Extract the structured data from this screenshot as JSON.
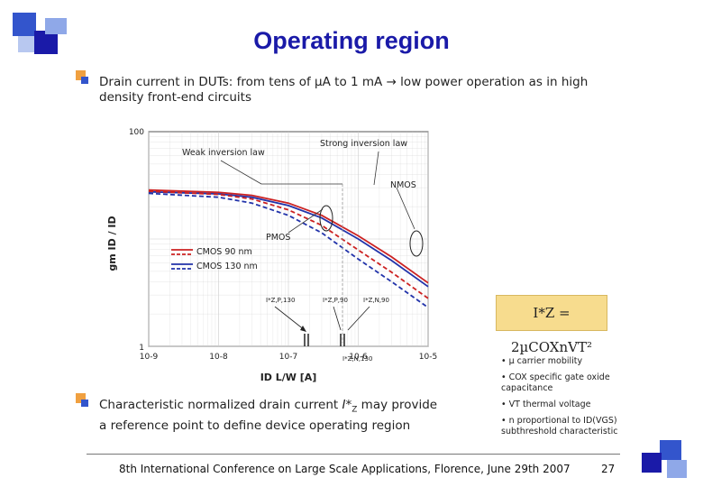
{
  "slide": {
    "title": "Operating region",
    "bullet1": "Drain current in DUTs: from tens of µA to 1 mA → low power operation as in high density front-end circuits",
    "bullet2_pre": "Characteristic normalized drain current ",
    "bullet2_sym": "I*",
    "bullet2_sub": "Z",
    "bullet2_post": " may provide a reference point to define device operating region",
    "footer": "8th International Conference on Large Scale Applications, Florence, June 29th 2007",
    "page_number": "27"
  },
  "formula": {
    "text": "I*Z = 2µCOXnVT²"
  },
  "notes": [
    "• µ carrier mobility",
    "• COX specific gate oxide capacitance",
    "• VT thermal voltage",
    "• n proportional to ID(VGS) subthreshold characteristic"
  ],
  "colors": {
    "title": "#1a1aa8",
    "bullet_orange": "#f0a040",
    "bullet_blue": "#3355cc",
    "cmos90": "#cc2222",
    "cmos130": "#2233aa",
    "formula_bg": "#f7dc8e"
  },
  "chart_data": {
    "type": "line",
    "xscale": "log",
    "yscale": "log",
    "xlim": [
      1e-09,
      1e-05
    ],
    "ylim": [
      1,
      100
    ],
    "xticks": [
      "10-9",
      "10-8",
      "10-7",
      "10-6",
      "10-5"
    ],
    "yticks": [
      "1",
      "100"
    ],
    "xlabel": "ID L/W [A]",
    "ylabel": "gm ID / ID",
    "legend": [
      "CMOS 90 nm",
      "CMOS 130 nm"
    ],
    "legend_placement": "left-middle",
    "annotations": [
      "Weak inversion law",
      "Strong inversion law",
      "NMOS",
      "PMOS",
      "I*Z,P,130",
      "I*Z,P,90",
      "I*Z,N,90",
      "I*Z,N,130"
    ],
    "series": [
      {
        "name": "NMOS 90 nm",
        "x": [
          1e-09,
          1e-08,
          3e-08,
          1e-07,
          3e-07,
          1e-06,
          3e-06,
          1e-05
        ],
        "y": [
          28.6,
          27.2,
          25.5,
          21.6,
          16.6,
          10.7,
          6.8,
          3.9
        ]
      },
      {
        "name": "NMOS 130 nm",
        "x": [
          1e-09,
          1e-08,
          3e-08,
          1e-07,
          3e-07,
          1e-06,
          3e-06,
          1e-05
        ],
        "y": [
          27.5,
          26.3,
          24.5,
          20.5,
          15.7,
          10.0,
          6.3,
          3.6
        ]
      },
      {
        "name": "PMOS 90 nm",
        "x": [
          1e-09,
          1e-08,
          3e-08,
          1e-07,
          3e-07,
          1e-06,
          3e-06,
          1e-05
        ],
        "y": [
          27.9,
          26.0,
          23.6,
          18.7,
          13.4,
          7.9,
          4.9,
          2.8
        ]
      },
      {
        "name": "PMOS 130 nm",
        "x": [
          1e-09,
          1e-08,
          3e-08,
          1e-07,
          3e-07,
          1e-06,
          3e-06,
          1e-05
        ],
        "y": [
          26.6,
          24.5,
          21.6,
          16.6,
          11.4,
          6.5,
          4.0,
          2.3
        ]
      }
    ]
  }
}
